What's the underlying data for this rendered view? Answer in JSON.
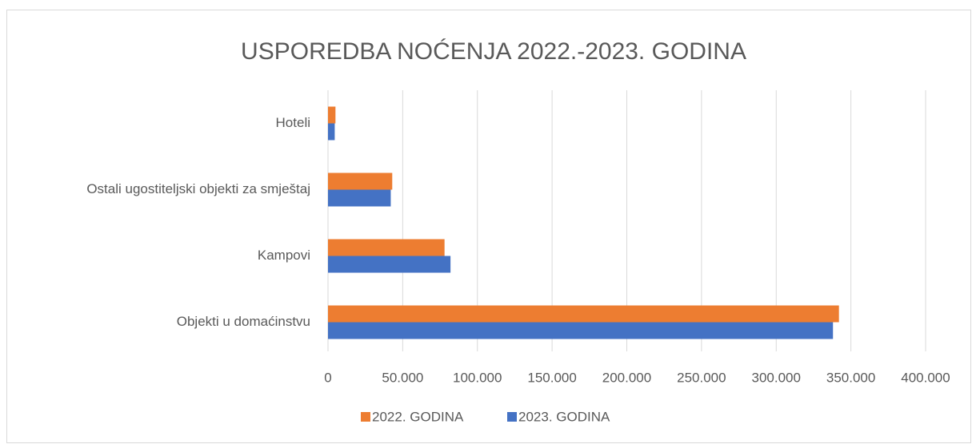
{
  "chart_data": {
    "type": "bar",
    "orientation": "horizontal",
    "title": "USPOREDBA NOĆENJA 2022.-2023. GODINA",
    "categories": [
      "Hoteli",
      "Ostali ugostiteljski objekti za smještaj",
      "Kampovi",
      "Objekti u domaćinstvu"
    ],
    "series": [
      {
        "name": "2022. GODINA",
        "color": "#ed7d31",
        "values": [
          5000,
          43000,
          78000,
          342000
        ]
      },
      {
        "name": "2023. GODINA",
        "color": "#4472c4",
        "values": [
          4500,
          42000,
          82000,
          338000
        ]
      }
    ],
    "xlim": [
      0,
      400000
    ],
    "xticks": [
      0,
      {
        "value": 50000,
        "label": "50.000"
      },
      {
        "value": 100000,
        "label": "100.000"
      },
      {
        "value": 150000,
        "label": "150.000"
      },
      {
        "value": 200000,
        "label": "200.000"
      },
      {
        "value": 250000,
        "label": "250.000"
      },
      {
        "value": 300000,
        "label": "300.000"
      },
      {
        "value": 350000,
        "label": "350.000"
      },
      {
        "value": 400000,
        "label": "400.000"
      }
    ],
    "grid": true,
    "legend": "bottom"
  }
}
